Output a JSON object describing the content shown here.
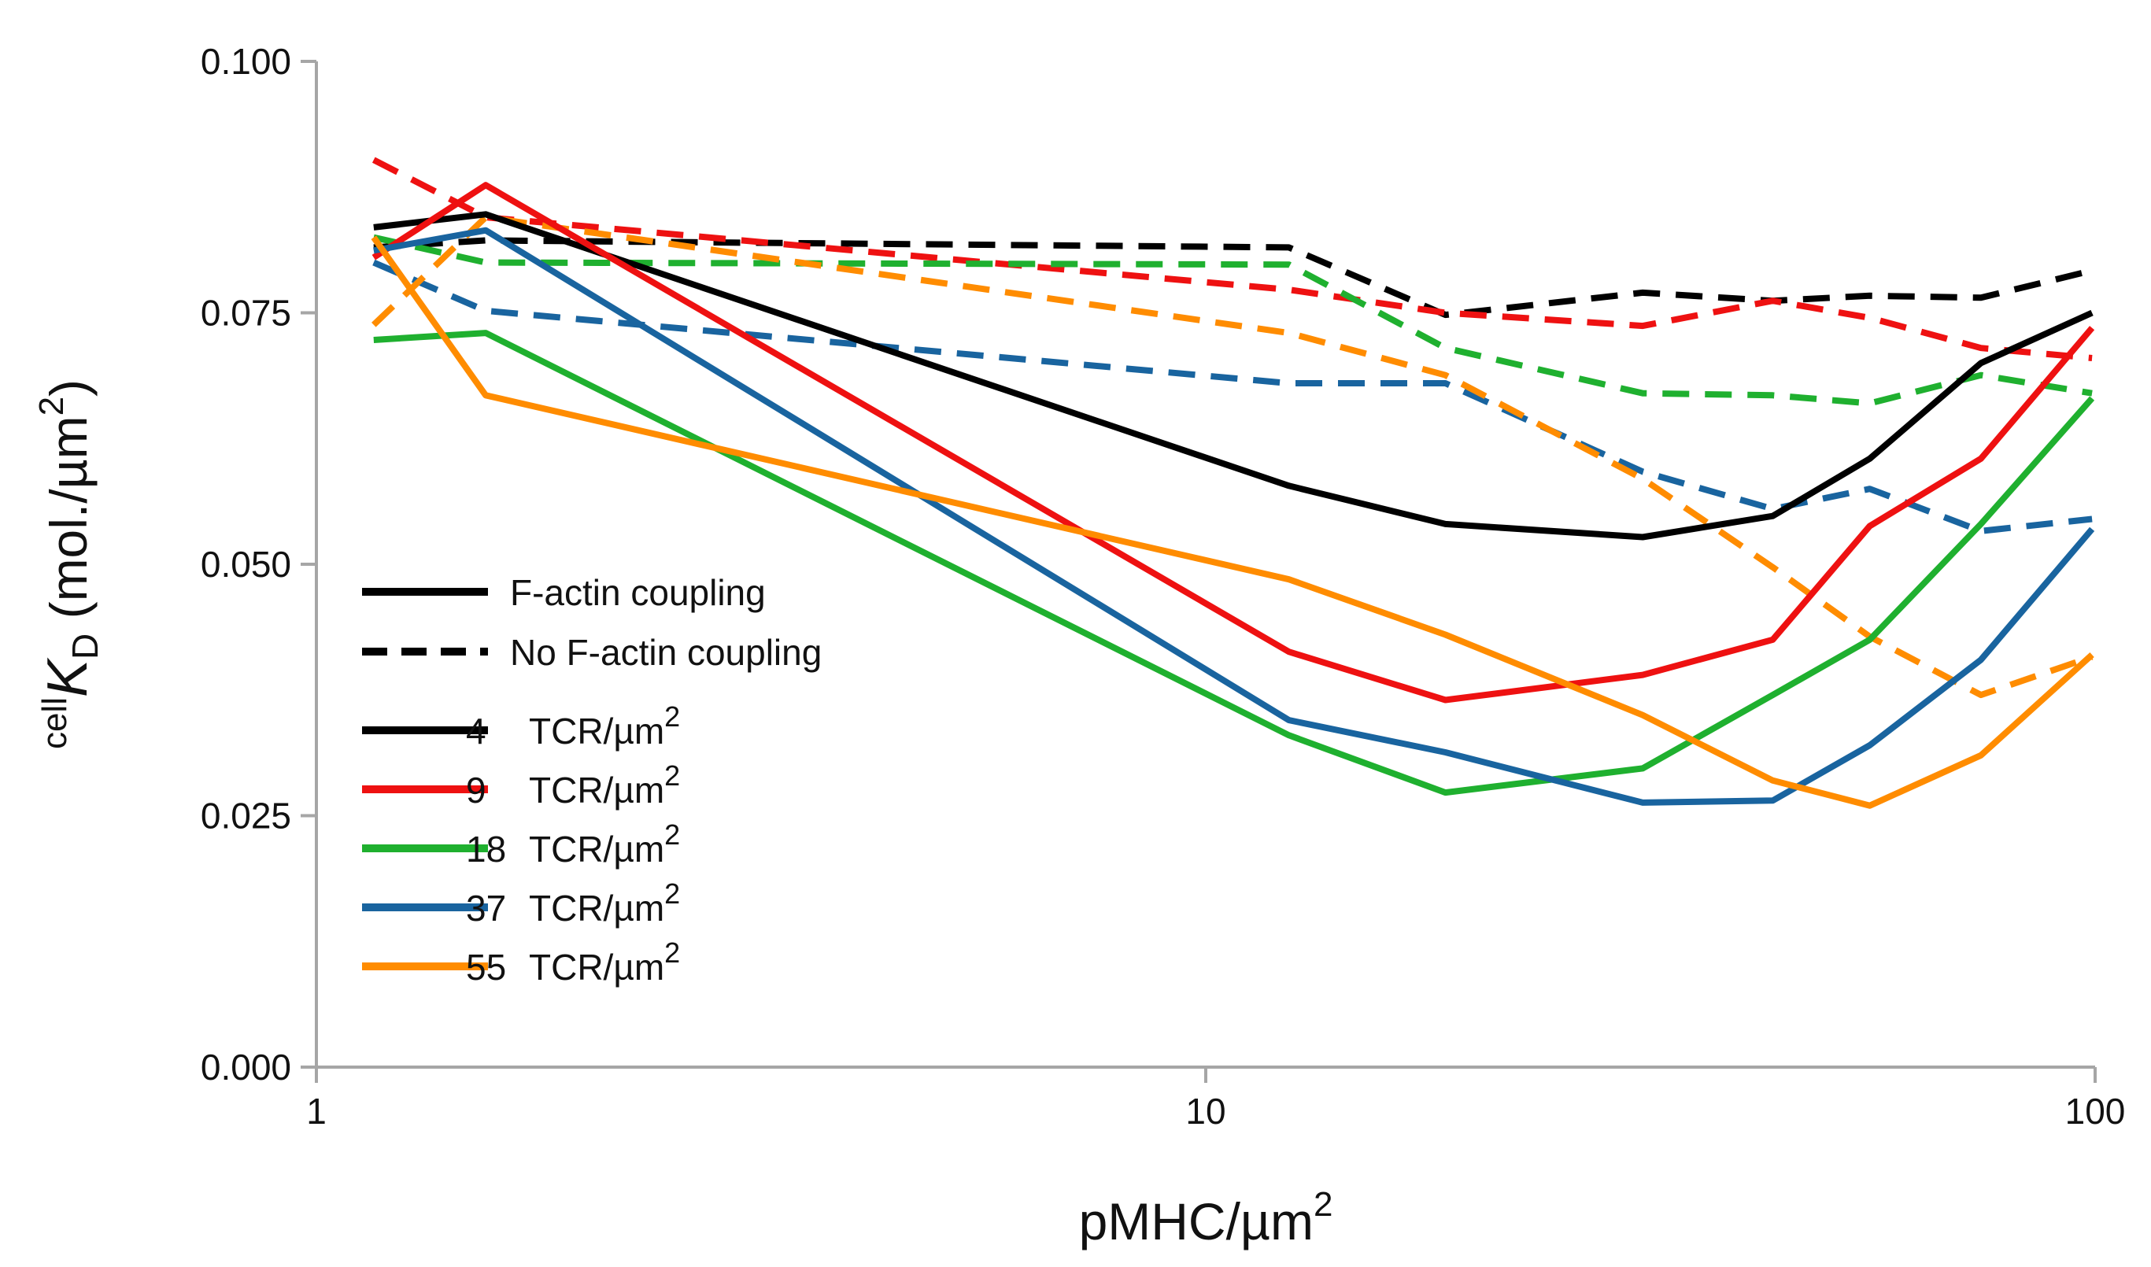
{
  "chart_data": {
    "type": "line",
    "title": "",
    "xlabel": "pMHC/µm",
    "xlabel_sup": "2",
    "ylabel_sup_prefix": "cell",
    "ylabel_main": "K",
    "ylabel_sub": "D",
    "ylabel_units": " (mol./µm",
    "ylabel_units_sup": "2",
    "ylabel_close": ")",
    "xscale": "log",
    "xlim": [
      1,
      100
    ],
    "ylim": [
      0,
      0.1
    ],
    "xticks": [
      {
        "value": 1,
        "label": "1"
      },
      {
        "value": 10,
        "label": "10"
      },
      {
        "value": 100,
        "label": "100"
      }
    ],
    "yticks": [
      {
        "value": 0,
        "label": "0.000"
      },
      {
        "value": 0.025,
        "label": "0.025"
      },
      {
        "value": 0.05,
        "label": "0.050"
      },
      {
        "value": 0.075,
        "label": "0.075"
      },
      {
        "value": 0.1,
        "label": "0.100"
      }
    ],
    "grid": false,
    "legend_position": "center-left",
    "legend_style": [
      {
        "label": "F-actin coupling",
        "dash": "solid",
        "color": "#000000"
      },
      {
        "label": "No F-actin coupling",
        "dash": "dashed",
        "color": "#000000"
      }
    ],
    "legend_series": [
      {
        "num": "4",
        "num_label": "4",
        "unit": "TCR/µm",
        "sup": "2",
        "color": "#000000"
      },
      {
        "num": "9",
        "num_label": "9",
        "unit": "TCR/µm",
        "sup": "2",
        "color": "#ee1111"
      },
      {
        "num": "18",
        "num_label": "18",
        "unit": "TCR/µm",
        "sup": "2",
        "color": "#1fb02f"
      },
      {
        "num": "37",
        "num_label": "37",
        "unit": "TCR/µm",
        "sup": "2",
        "color": "#19649f"
      },
      {
        "num": "55",
        "num_label": "55",
        "unit": "TCR/µm",
        "sup": "2",
        "color": "#ff8c00"
      }
    ],
    "series": [
      {
        "name": "4 TCR/µm2 F-actin coupling",
        "color": "#000000",
        "dash": "solid",
        "x": [
          1.16,
          1.55,
          12.4,
          18.6,
          31.0,
          43.4,
          55.8,
          74.4,
          99.2
        ],
        "y": [
          0.0835,
          0.0848,
          0.0578,
          0.054,
          0.0527,
          0.0548,
          0.0605,
          0.07,
          0.075
        ]
      },
      {
        "name": "9 TCR/µm2 F-actin coupling",
        "color": "#ee1111",
        "dash": "solid",
        "x": [
          1.16,
          1.55,
          12.4,
          18.6,
          31.0,
          43.4,
          55.8,
          74.4,
          99.2
        ],
        "y": [
          0.0805,
          0.0877,
          0.0413,
          0.0365,
          0.039,
          0.0425,
          0.0538,
          0.0605,
          0.0735
        ]
      },
      {
        "name": "18 TCR/µm2 F-actin coupling",
        "color": "#1fb02f",
        "dash": "solid",
        "x": [
          1.16,
          1.55,
          12.4,
          18.6,
          31.0,
          43.4,
          55.8,
          74.4,
          99.2
        ],
        "y": [
          0.0723,
          0.073,
          0.033,
          0.0273,
          0.0297,
          0.037,
          0.0425,
          0.054,
          0.0665
        ]
      },
      {
        "name": "37 TCR/µm2 F-actin coupling",
        "color": "#19649f",
        "dash": "solid",
        "x": [
          1.16,
          1.55,
          12.4,
          18.6,
          31.0,
          43.4,
          55.8,
          74.4,
          99.2
        ],
        "y": [
          0.0812,
          0.0832,
          0.0345,
          0.0313,
          0.0263,
          0.0265,
          0.032,
          0.0405,
          0.0535
        ]
      },
      {
        "name": "55 TCR/µm2 F-actin coupling",
        "color": "#ff8c00",
        "dash": "solid",
        "x": [
          1.16,
          1.55,
          12.4,
          18.6,
          31.0,
          43.4,
          55.8,
          74.4,
          99.2
        ],
        "y": [
          0.0825,
          0.0668,
          0.0485,
          0.043,
          0.035,
          0.0285,
          0.026,
          0.031,
          0.041
        ]
      },
      {
        "name": "4 TCR/µm2 No F-actin coupling",
        "color": "#000000",
        "dash": "dashed",
        "x": [
          1.16,
          1.55,
          12.4,
          18.6,
          31.0,
          43.4,
          55.8,
          74.4,
          99.2
        ],
        "y": [
          0.0815,
          0.0822,
          0.0815,
          0.0748,
          0.077,
          0.0762,
          0.0767,
          0.0765,
          0.0792
        ]
      },
      {
        "name": "9 TCR/µm2 No F-actin coupling",
        "color": "#ee1111",
        "dash": "dashed",
        "x": [
          1.16,
          1.55,
          12.4,
          18.6,
          31.0,
          43.4,
          55.8,
          74.4,
          99.2
        ],
        "y": [
          0.0902,
          0.0845,
          0.0773,
          0.075,
          0.0737,
          0.0762,
          0.0745,
          0.0715,
          0.0705
        ]
      },
      {
        "name": "18 TCR/µm2 No F-actin coupling",
        "color": "#1fb02f",
        "dash": "dashed",
        "x": [
          1.16,
          1.55,
          12.4,
          18.6,
          31.0,
          43.4,
          55.8,
          74.4,
          99.2
        ],
        "y": [
          0.0825,
          0.08,
          0.0798,
          0.0715,
          0.067,
          0.0668,
          0.066,
          0.0688,
          0.067
        ]
      },
      {
        "name": "37 TCR/µm2 No F-actin coupling",
        "color": "#19649f",
        "dash": "dashed",
        "x": [
          1.16,
          1.55,
          12.4,
          18.6,
          31.0,
          43.4,
          55.8,
          74.4,
          99.2
        ],
        "y": [
          0.08,
          0.0752,
          0.068,
          0.068,
          0.0592,
          0.0555,
          0.0575,
          0.0533,
          0.0545
        ]
      },
      {
        "name": "55 TCR/µm2 No F-actin coupling",
        "color": "#ff8c00",
        "dash": "dashed",
        "x": [
          1.16,
          1.55,
          12.4,
          18.6,
          31.0,
          43.4,
          55.8,
          74.4,
          99.2
        ],
        "y": [
          0.0738,
          0.0845,
          0.073,
          0.0688,
          0.0585,
          0.0497,
          0.0428,
          0.037,
          0.0408
        ]
      }
    ]
  }
}
